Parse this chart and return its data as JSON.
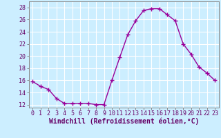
{
  "x": [
    0,
    1,
    2,
    3,
    4,
    5,
    6,
    7,
    8,
    9,
    10,
    11,
    12,
    13,
    14,
    15,
    16,
    17,
    18,
    19,
    20,
    21,
    22,
    23
  ],
  "y": [
    15.8,
    15.0,
    14.5,
    13.0,
    12.2,
    12.2,
    12.2,
    12.2,
    12.0,
    12.0,
    16.0,
    19.8,
    23.5,
    25.8,
    27.5,
    27.8,
    27.8,
    26.8,
    25.8,
    22.0,
    20.3,
    18.2,
    17.2,
    16.0
  ],
  "line_color": "#990099",
  "marker": "+",
  "marker_size": 4,
  "marker_lw": 1.0,
  "bg_color": "#cceeff",
  "grid_color": "#ffffff",
  "xlabel": "Windchill (Refroidissement éolien,°C)",
  "xlabel_fontsize": 7,
  "ylim": [
    11.5,
    29
  ],
  "xlim": [
    -0.5,
    23.5
  ],
  "yticks": [
    12,
    14,
    16,
    18,
    20,
    22,
    24,
    26,
    28
  ],
  "xticks": [
    0,
    1,
    2,
    3,
    4,
    5,
    6,
    7,
    8,
    9,
    10,
    11,
    12,
    13,
    14,
    15,
    16,
    17,
    18,
    19,
    20,
    21,
    22,
    23
  ],
  "tick_fontsize": 6,
  "line_width": 1.0
}
